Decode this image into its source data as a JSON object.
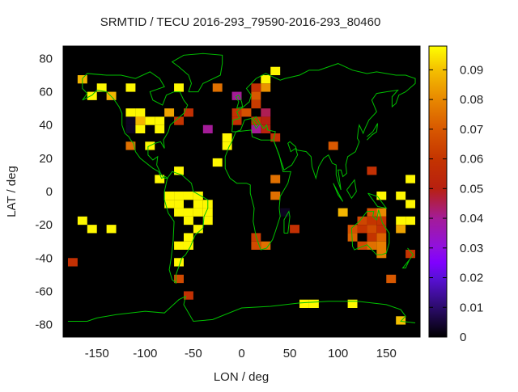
{
  "chart_data": {
    "type": "heatmap",
    "title": "SRMTID / TECU 2016-293_79590-2016-293_80460",
    "xlabel": "LON / deg",
    "ylabel": "LAT / deg",
    "xlim": [
      -185,
      185
    ],
    "ylim": [
      -87.5,
      87.5
    ],
    "xticks": [
      -150,
      -100,
      -50,
      0,
      50,
      100,
      150
    ],
    "yticks": [
      -80,
      -60,
      -40,
      -20,
      0,
      20,
      40,
      60,
      80
    ],
    "cell_size_deg": [
      10,
      5
    ],
    "colorbar": {
      "range": [
        0,
        0.098
      ],
      "ticks": [
        0,
        0.01,
        0.02,
        0.03,
        0.04,
        0.05,
        0.06,
        0.07,
        0.08,
        0.09
      ],
      "tick_labels": [
        "0",
        "0.01",
        "0.02",
        "0.03",
        "0.04",
        "0.05",
        "0.06",
        "0.07",
        "0.08",
        "0.09"
      ],
      "palette": [
        [
          0,
          "#000000"
        ],
        [
          0.01,
          "#2c0c6c"
        ],
        [
          0.02,
          "#5a10d8"
        ],
        [
          0.025,
          "#8000ff"
        ],
        [
          0.03,
          "#9010e0"
        ],
        [
          0.04,
          "#a41c98"
        ],
        [
          0.05,
          "#b82010"
        ],
        [
          0.06,
          "#c43400"
        ],
        [
          0.07,
          "#d85800"
        ],
        [
          0.08,
          "#e88800"
        ],
        [
          0.09,
          "#f4c000"
        ],
        [
          0.098,
          "#ffff00"
        ]
      ]
    },
    "background_color": "#000000",
    "coastline_color": "#00c000",
    "cells": [
      [
        -165,
        67.5,
        0.088
      ],
      [
        -145,
        62.5,
        0.097
      ],
      [
        -155,
        57.5,
        0.097
      ],
      [
        -135,
        57.5,
        0.088
      ],
      [
        -115,
        62.5,
        0.097
      ],
      [
        -65,
        62.5,
        0.097
      ],
      [
        -25,
        62.5,
        0.075
      ],
      [
        -5,
        57.5,
        0.04
      ],
      [
        -115,
        47.5,
        0.097
      ],
      [
        -105,
        47.5,
        0.097
      ],
      [
        -75,
        47.5,
        0.085
      ],
      [
        -55,
        47.5,
        0.058
      ],
      [
        -5,
        47.5,
        0.058
      ],
      [
        -5,
        42.5,
        0.058
      ],
      [
        -115,
        42.5,
        0.003
      ],
      [
        -105,
        42.5,
        0.088
      ],
      [
        -95,
        42.5,
        0.097
      ],
      [
        -85,
        42.5,
        0.097
      ],
      [
        -65,
        42.5,
        0.06
      ],
      [
        -115,
        37.5,
        0.003
      ],
      [
        -105,
        37.5,
        0.097
      ],
      [
        -85,
        37.5,
        0.097
      ],
      [
        -35,
        37.5,
        0.04
      ],
      [
        -15,
        32.5,
        0.097
      ],
      [
        -15,
        27.5,
        0.097
      ],
      [
        -115,
        27.5,
        0.075
      ],
      [
        -95,
        27.5,
        0.097
      ],
      [
        -25,
        17.5,
        0.097
      ],
      [
        -65,
        12.5,
        0.097
      ],
      [
        -85,
        7.5,
        0.097
      ],
      [
        35,
        72.5,
        0.097
      ],
      [
        25,
        67.5,
        0.097
      ],
      [
        15,
        62.5,
        0.058
      ],
      [
        25,
        62.5,
        0.082
      ],
      [
        15,
        57.5,
        0.07
      ],
      [
        15,
        52.5,
        0.062
      ],
      [
        5,
        47.5,
        0.068
      ],
      [
        25,
        47.5,
        0.045
      ],
      [
        15,
        42.5,
        0.06
      ],
      [
        25,
        42.5,
        0.05
      ],
      [
        15,
        37.5,
        0.04
      ],
      [
        25,
        37.5,
        0.052
      ],
      [
        35,
        32.5,
        0.058
      ],
      [
        95,
        27.5,
        0.07
      ],
      [
        35,
        7.5,
        0.075
      ],
      [
        135,
        12.5,
        0.058
      ],
      [
        175,
        7.5,
        0.097
      ],
      [
        -75,
        -2.5,
        0.097
      ],
      [
        -65,
        -2.5,
        0.097
      ],
      [
        -55,
        -2.5,
        0.097
      ],
      [
        -45,
        -2.5,
        0.097
      ],
      [
        -75,
        -7.5,
        0.097
      ],
      [
        -65,
        -7.5,
        0.097
      ],
      [
        -45,
        -7.5,
        0.097
      ],
      [
        -35,
        -7.5,
        0.097
      ],
      [
        -65,
        -12.5,
        0.097
      ],
      [
        -55,
        -12.5,
        0.097
      ],
      [
        -45,
        -12.5,
        0.097
      ],
      [
        -35,
        -12.5,
        0.097
      ],
      [
        -55,
        -17.5,
        0.097
      ],
      [
        -35,
        -17.5,
        0.097
      ],
      [
        -45,
        -22.5,
        0.097
      ],
      [
        -55,
        -27.5,
        0.097
      ],
      [
        -65,
        -32.5,
        0.097
      ],
      [
        -55,
        -32.5,
        0.097
      ],
      [
        -65,
        -42.5,
        0.097
      ],
      [
        -65,
        -52.5,
        0.066
      ],
      [
        -55,
        -62.5,
        0.058
      ],
      [
        -165,
        -17.5,
        0.097
      ],
      [
        -155,
        -22.5,
        0.097
      ],
      [
        -135,
        -22.5,
        0.097
      ],
      [
        -175,
        -42.5,
        0.058
      ],
      [
        35,
        -2.5,
        0.075
      ],
      [
        45,
        -12.5,
        0.003
      ],
      [
        55,
        -22.5,
        0.058
      ],
      [
        15,
        -27.5,
        0.062
      ],
      [
        15,
        -32.5,
        0.066
      ],
      [
        25,
        -32.5,
        0.075
      ],
      [
        105,
        -12.5,
        0.088
      ],
      [
        145,
        -2.5,
        0.097
      ],
      [
        165,
        -2.5,
        0.097
      ],
      [
        175,
        -7.5,
        0.097
      ],
      [
        135,
        -12.5,
        0.068
      ],
      [
        145,
        -12.5,
        0.08
      ],
      [
        125,
        -17.5,
        0.065
      ],
      [
        135,
        -17.5,
        0.06
      ],
      [
        145,
        -17.5,
        0.06
      ],
      [
        165,
        -17.5,
        0.097
      ],
      [
        175,
        -17.5,
        0.097
      ],
      [
        115,
        -22.5,
        0.068
      ],
      [
        125,
        -22.5,
        0.06
      ],
      [
        135,
        -22.5,
        0.066
      ],
      [
        145,
        -22.5,
        0.058
      ],
      [
        165,
        -22.5,
        0.085
      ],
      [
        115,
        -27.5,
        0.072
      ],
      [
        135,
        -27.5,
        0.06
      ],
      [
        145,
        -27.5,
        0.072
      ],
      [
        125,
        -32.5,
        0.066
      ],
      [
        135,
        -32.5,
        0.075
      ],
      [
        145,
        -32.5,
        0.078
      ],
      [
        145,
        -37.5,
        0.078
      ],
      [
        175,
        -37.5,
        0.06
      ],
      [
        155,
        -52.5,
        0.07
      ],
      [
        65,
        -67.5,
        0.097
      ],
      [
        75,
        -67.5,
        0.097
      ],
      [
        115,
        -67.5,
        0.097
      ],
      [
        165,
        -77.5,
        0.09
      ]
    ]
  }
}
